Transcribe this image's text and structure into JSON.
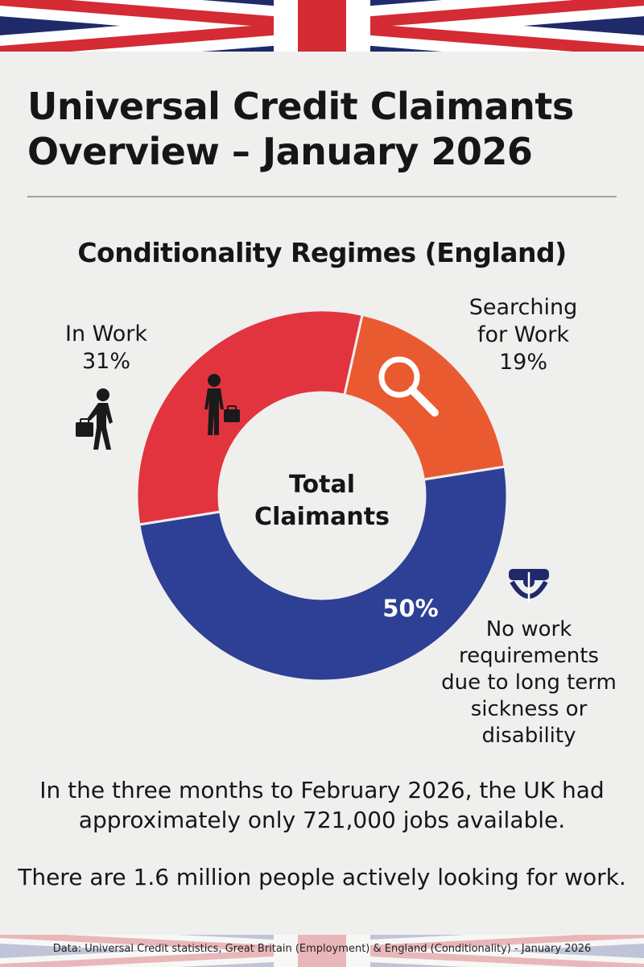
{
  "header": {
    "title_line1": "Universal Credit Claimants",
    "title_line2": "Overview – January 2026"
  },
  "chart_data": {
    "type": "pie",
    "style": "donut",
    "title": "Conditionality Regimes (England)",
    "center_label_line1": "Total",
    "center_label_line2": "Claimants",
    "slices": [
      {
        "label_lines": [
          "No work",
          "requirements",
          "due to long term",
          "sickness or",
          "disability"
        ],
        "value": 50,
        "value_label": "50%",
        "color": "#2e3f96"
      },
      {
        "label_lines": [
          "In Work"
        ],
        "value": 31,
        "value_label": "31%",
        "color": "#e2343f"
      },
      {
        "label_lines": [
          "Searching",
          "for Work"
        ],
        "value": 19,
        "value_label": "19%",
        "color": "#ea5a31"
      }
    ]
  },
  "icons": {
    "worker_outside": "person-with-briefcase-icon",
    "worker_inside": "person-with-briefcase-icon",
    "searching": "magnifying-glass-icon",
    "no_work": "wheelchair-icon"
  },
  "notes": {
    "jobs_line1": "In the three months to February 2026, the UK had",
    "jobs_line2": "approximately only 721,000 jobs available.",
    "seekers": "There are 1.6 million people actively looking for work."
  },
  "footer": {
    "source": "Data: Universal Credit statistics, Great Britain (Employment) & England (Conditionality) - January 2026"
  },
  "colors": {
    "background": "#efefed",
    "flag_blue": "#1f2a6b",
    "flag_red": "#d42b35",
    "flag_white": "#ffffff"
  }
}
